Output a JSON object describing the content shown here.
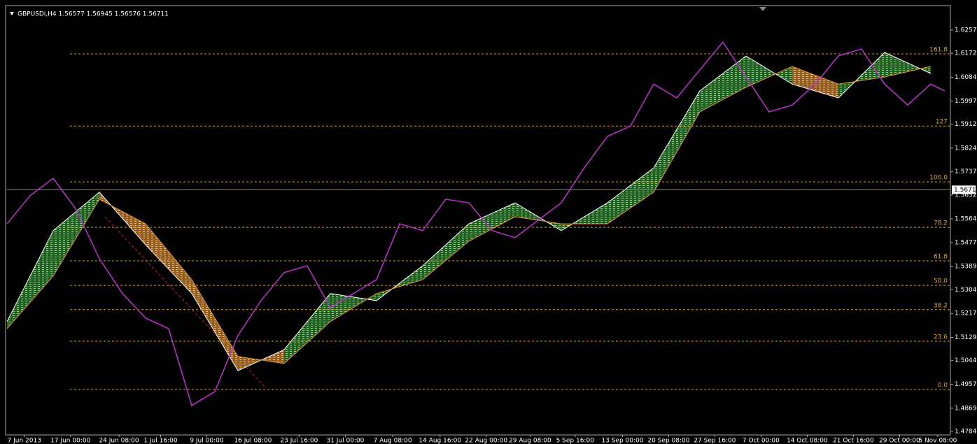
{
  "chart_data": {
    "type": "line",
    "title": "GBPUSDi,H4  1.56577 1.56945 1.56576 1.56711",
    "color": "#c030d0",
    "x": [
      0,
      20,
      40,
      60,
      80,
      100,
      120,
      140,
      160,
      180,
      200,
      220,
      240,
      260,
      280,
      300,
      320,
      340,
      360,
      380,
      400,
      420,
      440,
      460,
      480,
      500,
      520,
      540,
      560,
      580,
      600,
      620,
      640,
      660,
      680,
      700,
      720,
      740,
      760,
      780,
      800,
      812
    ],
    "values": [
      1.5546,
      1.5649,
      1.5713,
      1.5598,
      1.5418,
      1.529,
      1.52,
      1.5161,
      1.4879,
      1.493,
      1.5136,
      1.5264,
      1.5367,
      1.5392,
      1.5238,
      1.529,
      1.5341,
      1.5546,
      1.5521,
      1.5636,
      1.5623,
      1.5521,
      1.5495,
      1.5559,
      1.5623,
      1.5752,
      1.5867,
      1.5905,
      1.6059,
      1.6008,
      1.6111,
      1.6213,
      1.6085,
      1.5957,
      1.5982,
      1.6059,
      1.6162,
      1.6188,
      1.6059,
      1.5982,
      1.6059,
      1.6034
    ],
    "cloud": {
      "x": [
        0,
        40,
        80,
        120,
        160,
        200,
        240,
        280,
        320,
        360,
        400,
        440,
        480,
        520,
        560,
        600,
        640,
        680,
        720,
        760,
        800
      ],
      "span_a": [
        1.5187,
        1.5521,
        1.5662,
        1.5469,
        1.529,
        1.5007,
        1.5084,
        1.529,
        1.5264,
        1.5392,
        1.5546,
        1.5623,
        1.5521,
        1.5623,
        1.5751,
        1.6034,
        1.6162,
        1.6059,
        1.6008,
        1.6175,
        1.6098
      ],
      "span_b": [
        1.5161,
        1.5354,
        1.5636,
        1.5546,
        1.5341,
        1.5059,
        1.5033,
        1.5187,
        1.529,
        1.5341,
        1.5482,
        1.5572,
        1.5546,
        1.5546,
        1.5662,
        1.5957,
        1.6047,
        1.6124,
        1.6059,
        1.6085,
        1.6124
      ],
      "bull_color": "#2e9a2e",
      "bear_color": "#e8902a"
    },
    "fib_levels": [
      {
        "level": 161.8,
        "price": 1.617
      },
      {
        "level": 127,
        "price": 1.5905
      },
      {
        "level": {
          "value": 100,
          "label": "100.0"
        },
        "price": 1.57
      },
      {
        "level": 78.2,
        "price": 1.5533
      },
      {
        "level": 61.8,
        "price": 1.541
      },
      {
        "level": {
          "value": 50,
          "label": "50.0"
        },
        "price": 1.532
      },
      {
        "level": 38.2,
        "price": 1.5231
      },
      {
        "level": 23.6,
        "price": 1.5115
      },
      {
        "level": {
          "value": 0,
          "label": "0.0"
        },
        "price": 1.4938
      }
    ],
    "fib_color": "#d9a520",
    "current_price": 1.5671,
    "xlim": [
      0,
      817
    ],
    "ylim": [
      1.4771,
      1.6347
    ],
    "yticks": [
      1.6257,
      1.6172,
      1.6084,
      1.5997,
      1.5912,
      1.5824,
      1.5737,
      1.5652,
      1.5564,
      1.5477,
      1.5389,
      1.5304,
      1.5217,
      1.5129,
      1.5044,
      1.4957,
      1.4869,
      1.4784
    ],
    "xticks": [
      {
        "value": 15,
        "label": "7 Jun 2013"
      },
      {
        "value": 55,
        "label": "17 Jun 00:00"
      },
      {
        "value": 97,
        "label": "24 Jun 08:00"
      },
      {
        "value": 133,
        "label": "1 Jul 16:00"
      },
      {
        "value": 173,
        "label": "9 Jul 00:00"
      },
      {
        "value": 213,
        "label": "16 Jul 08:00"
      },
      {
        "value": 253,
        "label": "23 Jul 16:00"
      },
      {
        "value": 293,
        "label": "31 Jul 00:00"
      },
      {
        "value": 334,
        "label": "7 Aug 08:00"
      },
      {
        "value": 375,
        "label": "14 Aug 16:00"
      },
      {
        "value": 415,
        "label": "22 Aug 00:00"
      },
      {
        "value": 453,
        "label": "29 Aug 08:00"
      },
      {
        "value": 492,
        "label": "5 Sep 16:00"
      },
      {
        "value": 533,
        "label": "13 Sep 00:00"
      },
      {
        "value": 573,
        "label": "20 Sep 08:00"
      },
      {
        "value": 613,
        "label": "27 Sep 16:00"
      },
      {
        "value": 653,
        "label": "7 Oct 00:00"
      },
      {
        "value": 693,
        "label": "14 Oct 08:00"
      },
      {
        "value": 733,
        "label": "21 Oct 16:00"
      },
      {
        "value": 773,
        "label": "29 Oct 00:00"
      },
      {
        "value": 806,
        "label": "5 Nov 08:00"
      }
    ]
  }
}
